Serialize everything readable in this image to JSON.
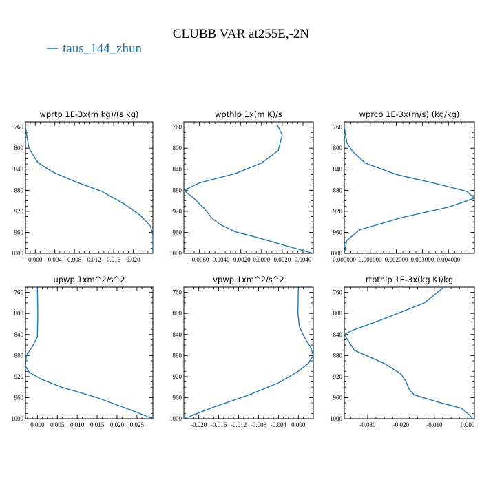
{
  "figure": {
    "title": "CLUBB VAR at255E,-2N",
    "legend": [
      {
        "label": "taus_144_zhun",
        "color": "#1f77b4"
      }
    ]
  },
  "chart_data": [
    {
      "type": "line",
      "title": "wprtp  1E-3x(m kg)/(s kg)",
      "xlim": [
        -0.002,
        0.024
      ],
      "ylim": [
        1000,
        750
      ],
      "xticks": [
        0.0,
        0.004,
        0.008,
        0.012,
        0.016,
        0.02
      ],
      "xticklabels": [
        "0.000",
        "0.004",
        "0.008",
        "0.012",
        "0.016",
        "0.020"
      ],
      "yticks": [
        760,
        800,
        840,
        880,
        920,
        960,
        1000
      ],
      "series": [
        {
          "name": "taus_144_zhun",
          "color": "#1f77b4",
          "x": [
            -0.002,
            -0.0013,
            0.0005,
            0.0035,
            0.008,
            0.0135,
            0.018,
            0.0215,
            0.0235,
            0.024,
            0.024
          ],
          "y": [
            760,
            800,
            827,
            845,
            863,
            882,
            905,
            928,
            948,
            965,
            1000
          ]
        }
      ]
    },
    {
      "type": "line",
      "title": "wpthlp  1x(m K)/s",
      "xlim": [
        -0.0075,
        0.005
      ],
      "ylim": [
        1000,
        750
      ],
      "xticks": [
        -0.006,
        -0.004,
        -0.002,
        0.0,
        0.002,
        0.004
      ],
      "xticklabels": [
        "-0.0060",
        "-0.0040",
        "-0.0020",
        "0.0000",
        "0.0020",
        "0.0040"
      ],
      "yticks": [
        760,
        800,
        840,
        880,
        920,
        960,
        1000
      ],
      "series": [
        {
          "name": "taus_144_zhun",
          "color": "#1f77b4",
          "x": [
            0.0015,
            0.002,
            0.0016,
            0.0,
            -0.0025,
            -0.006,
            -0.0075,
            -0.0065,
            -0.0055,
            -0.0048,
            -0.004,
            -0.0025,
            0.0,
            0.003,
            0.005
          ],
          "y": [
            755,
            775,
            805,
            828,
            848,
            866,
            880,
            896,
            915,
            933,
            945,
            959,
            972,
            989,
            1000
          ]
        }
      ]
    },
    {
      "type": "line",
      "title": "wprcp  1E-3x(m/s) (kg/kg)",
      "xlim": [
        -0.0,
        0.005
      ],
      "ylim": [
        1000,
        750
      ],
      "xticks": [
        0.0,
        0.001,
        0.002,
        0.003,
        0.004
      ],
      "xticklabels": [
        "0.000000",
        "0.001000",
        "0.002000",
        "0.003000",
        "0.004000"
      ],
      "yticks": [
        760,
        800,
        840,
        880,
        920,
        960,
        1000
      ],
      "series": [
        {
          "name": "taus_144_zhun",
          "color": "#1f77b4",
          "x": [
            0.0,
            0.0001,
            0.0003,
            0.0008,
            0.002,
            0.0035,
            0.0047,
            0.005,
            0.004,
            0.0022,
            0.0006,
            0.0001,
            0.0
          ],
          "y": [
            760,
            790,
            805,
            828,
            850,
            867,
            882,
            895,
            912,
            932,
            955,
            975,
            1000
          ]
        }
      ]
    },
    {
      "type": "line",
      "title": "upwp  1xm^2/s^2",
      "xlim": [
        -0.003,
        0.029
      ],
      "ylim": [
        1000,
        750
      ],
      "xticks": [
        0.0,
        0.005,
        0.01,
        0.015,
        0.02,
        0.025
      ],
      "xticklabels": [
        "0.000",
        "0.005",
        "0.010",
        "0.015",
        "0.020",
        "0.025"
      ],
      "yticks": [
        760,
        800,
        840,
        880,
        920,
        960,
        1000
      ],
      "series": [
        {
          "name": "taus_144_zhun",
          "color": "#1f77b4",
          "x": [
            0.0,
            0.0001,
            0.0,
            -0.0012,
            -0.0028,
            -0.003,
            -0.002,
            0.001,
            0.006,
            0.015,
            0.024,
            0.029
          ],
          "y": [
            752,
            800,
            845,
            862,
            880,
            900,
            912,
            925,
            940,
            960,
            985,
            1000
          ]
        }
      ]
    },
    {
      "type": "line",
      "title": "vpwp  1xm^2/s^2",
      "xlim": [
        -0.023,
        0.003
      ],
      "ylim": [
        1000,
        750
      ],
      "xticks": [
        -0.02,
        -0.016,
        -0.012,
        -0.008,
        -0.004,
        0.0
      ],
      "xticklabels": [
        "-0.020",
        "-0.016",
        "-0.012",
        "-0.008",
        "-0.004",
        "0.000"
      ],
      "yticks": [
        760,
        800,
        840,
        880,
        920,
        960,
        1000
      ],
      "series": [
        {
          "name": "taus_144_zhun",
          "color": "#1f77b4",
          "x": [
            0.0,
            -0.0001,
            0.0002,
            0.0012,
            0.0025,
            0.003,
            0.002,
            0.0,
            -0.004,
            -0.01,
            -0.017,
            -0.023
          ],
          "y": [
            752,
            800,
            825,
            845,
            865,
            880,
            895,
            910,
            932,
            955,
            978,
            1000
          ]
        }
      ]
    },
    {
      "type": "line",
      "title": "rtpthlp  1E-3x(kg K)/kg",
      "xlim": [
        -0.037,
        0.002
      ],
      "ylim": [
        1000,
        750
      ],
      "xticks": [
        -0.03,
        -0.02,
        -0.01,
        0.0
      ],
      "xticklabels": [
        "-0.030",
        "-0.020",
        "-0.010",
        "0.000"
      ],
      "yticks": [
        760,
        800,
        840,
        880,
        920,
        960,
        1000
      ],
      "series": [
        {
          "name": "taus_144_zhun",
          "color": "#1f77b4",
          "x": [
            -0.0075,
            -0.013,
            -0.025,
            -0.0345,
            -0.037,
            -0.036,
            -0.034,
            -0.025,
            -0.02,
            -0.0185,
            -0.0175,
            -0.016,
            -0.008,
            -0.002,
            0.0,
            0.0015
          ],
          "y": [
            752,
            780,
            810,
            832,
            840,
            850,
            870,
            895,
            915,
            930,
            945,
            955,
            970,
            980,
            990,
            1000
          ]
        }
      ]
    }
  ]
}
